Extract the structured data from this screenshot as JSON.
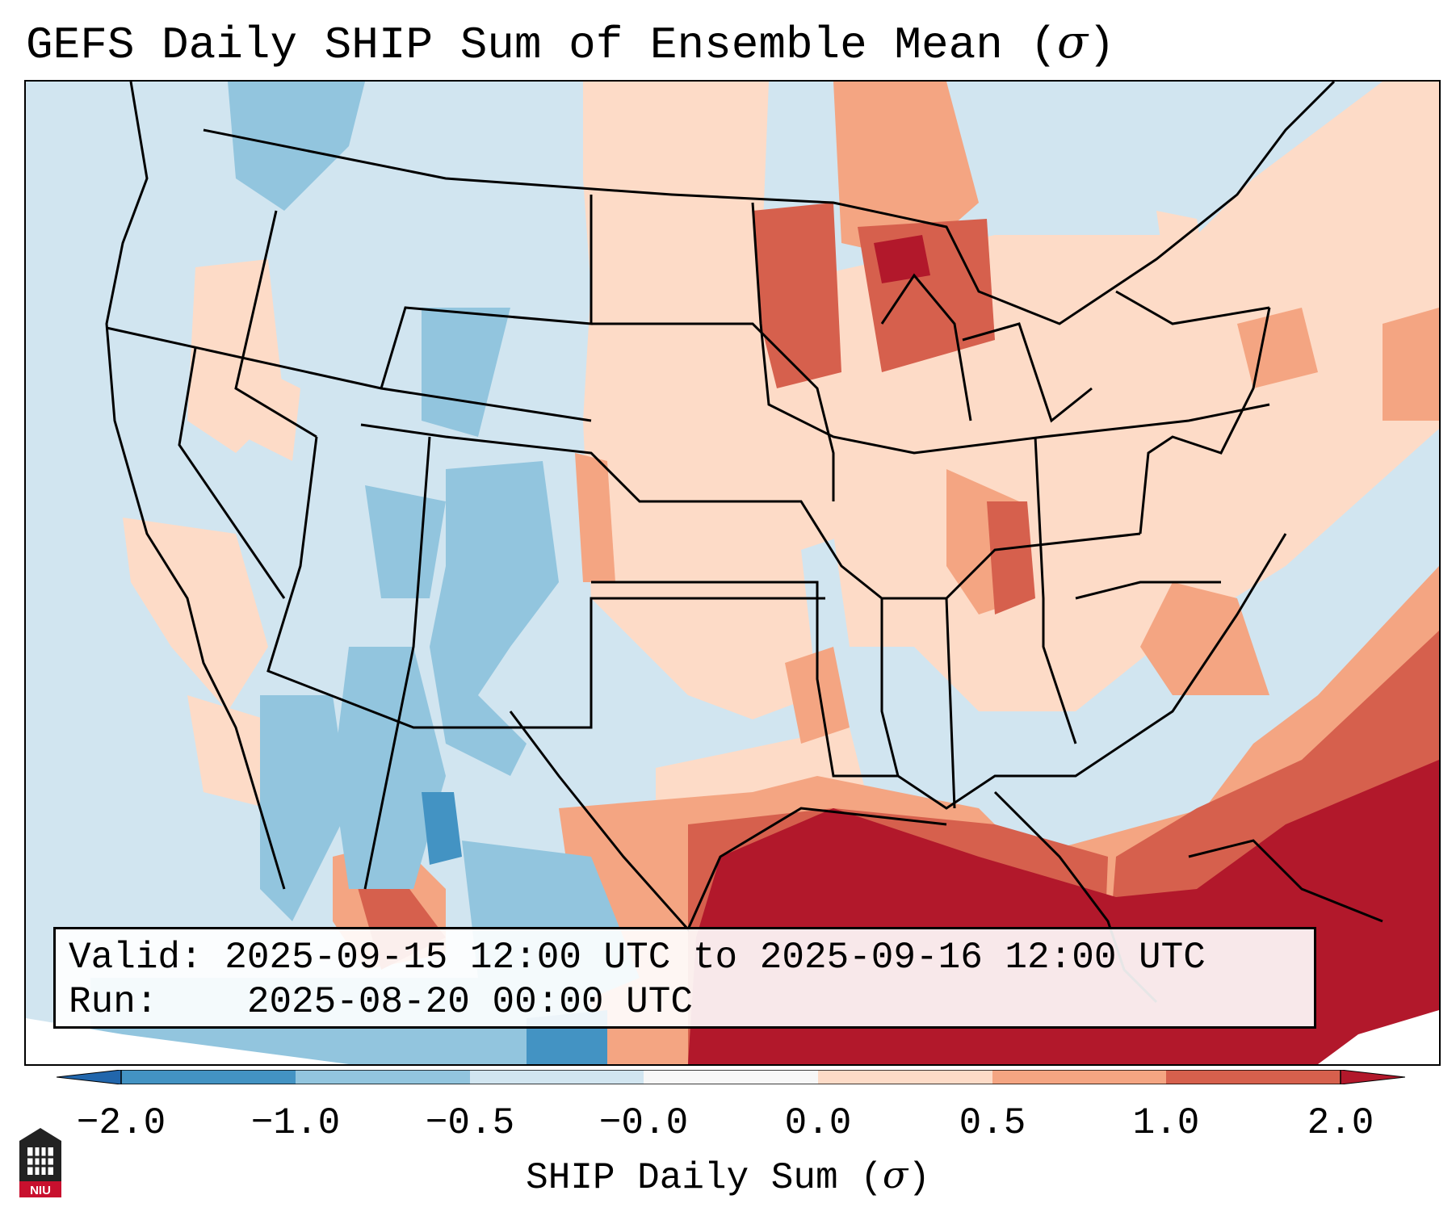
{
  "title": "GEFS Daily SHIP Sum of Ensemble Mean (",
  "title_symbol": "σ",
  "title_close": ")",
  "info": {
    "valid_label": "Valid:",
    "valid_value": "2025-09-15 12:00 UTC to 2025-09-16 12:00 UTC",
    "run_label": "Run:",
    "run_value": "2025-08-20 00:00 UTC"
  },
  "colorbar": {
    "label": "SHIP Daily Sum (",
    "label_symbol": "σ",
    "label_close": ")",
    "ticks": [
      "−2.0",
      "−1.0",
      "−0.5",
      "−0.0",
      "0.0",
      "0.5",
      "1.0",
      "2.0"
    ],
    "bin_colors": [
      "#4393c3",
      "#92c5de",
      "#d1e5f0",
      "#f7f7f7",
      "#fddbc7",
      "#f4a582",
      "#d6604d"
    ],
    "under_color": "#2166ac",
    "over_color": "#b2182b"
  },
  "colors": {
    "neg_strong": "#4393c3",
    "neg_mid": "#92c5de",
    "neg_weak": "#d1e5f0",
    "pos_weak": "#fddbc7",
    "pos_mid": "#f4a582",
    "pos_strong": "#d6604d",
    "pos_max": "#b2182b"
  },
  "logo_text": "NIU"
}
